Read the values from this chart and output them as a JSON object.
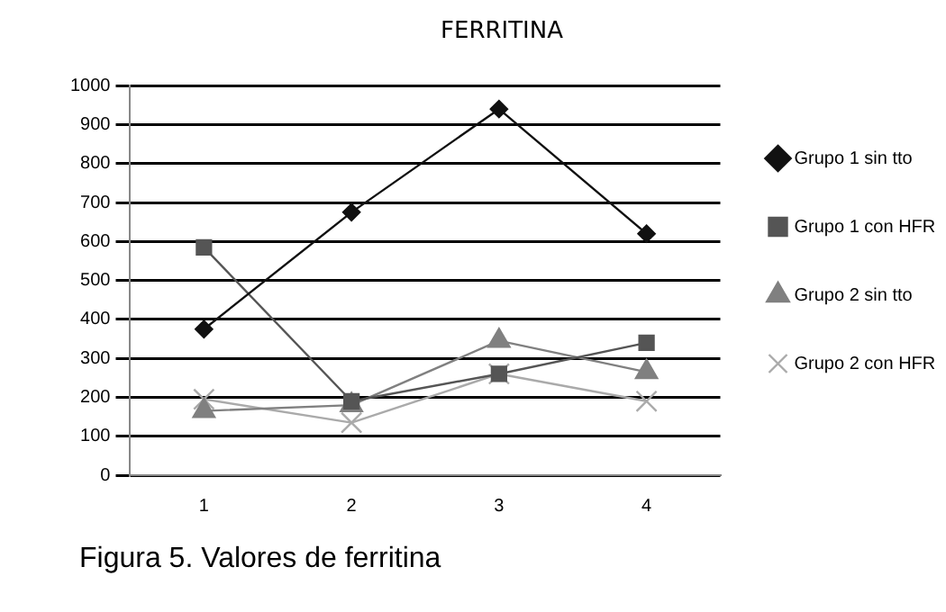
{
  "chart_data": {
    "type": "line",
    "title": "FERRITINA",
    "categories": [
      "1",
      "2",
      "3",
      "4"
    ],
    "series": [
      {
        "name": "Grupo 1 sin tto",
        "color": "#111111",
        "marker": "diamond",
        "values": [
          375,
          675,
          940,
          620
        ]
      },
      {
        "name": "Grupo 1 con HFR",
        "color": "#555555",
        "marker": "square",
        "values": [
          585,
          190,
          260,
          340
        ]
      },
      {
        "name": "Grupo 2 sin tto",
        "color": "#808080",
        "marker": "triangle",
        "values": [
          165,
          180,
          345,
          265
        ]
      },
      {
        "name": "Grupo 2 con HFR",
        "color": "#aaaaaa",
        "marker": "cross",
        "values": [
          195,
          135,
          260,
          190
        ]
      }
    ],
    "ylim": [
      0,
      1000
    ],
    "yticks": [
      0,
      100,
      200,
      300,
      400,
      500,
      600,
      700,
      800,
      900,
      1000
    ],
    "grid": "y",
    "legend": "right",
    "annotations": [
      "Figura 5. Valores de ferritina"
    ]
  }
}
